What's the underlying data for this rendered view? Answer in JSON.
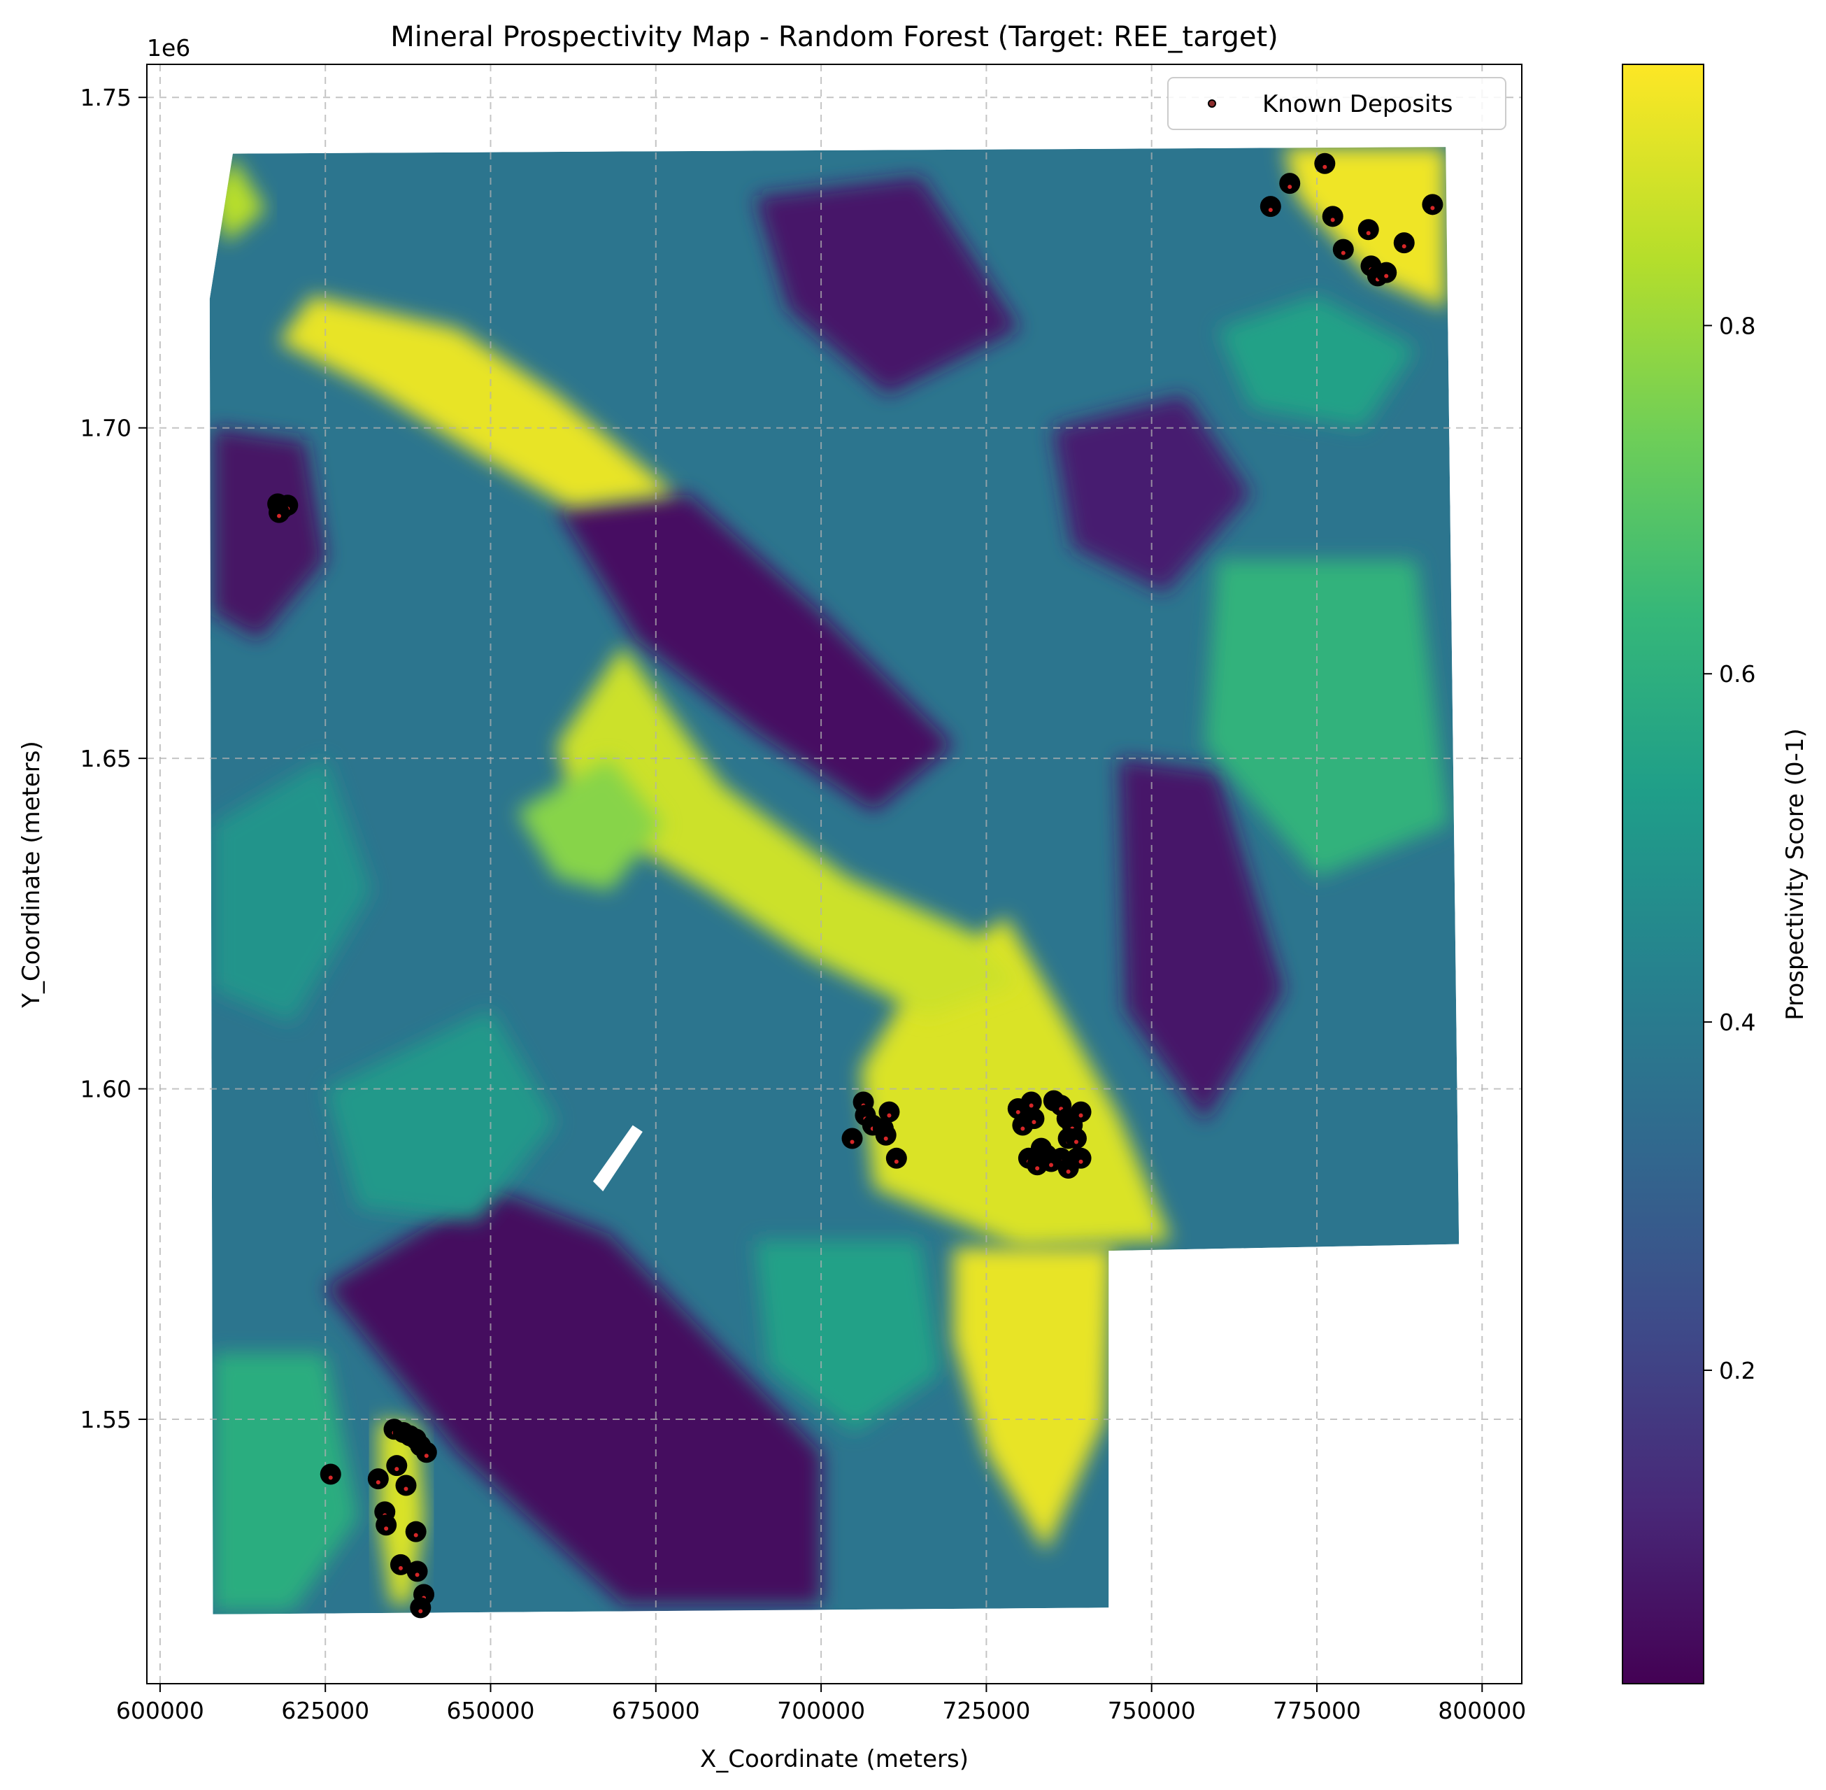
{
  "chart_data": {
    "type": "heatmap",
    "title": "Mineral Prospectivity Map - Random Forest (Target: REE_target)",
    "xlabel": "X_Coordinate (meters)",
    "ylabel": "Y_Coordinate (meters)",
    "y_offset_label": "1e6",
    "xlim": [
      598000,
      806000
    ],
    "ylim": [
      1.51,
      1.755
    ],
    "x_ticks": [
      600000,
      625000,
      650000,
      675000,
      700000,
      725000,
      750000,
      775000,
      800000
    ],
    "x_tick_labels": [
      "600000",
      "625000",
      "650000",
      "675000",
      "700000",
      "725000",
      "750000",
      "775000",
      "800000"
    ],
    "y_ticks": [
      1.55,
      1.6,
      1.65,
      1.7,
      1.75
    ],
    "y_tick_labels": [
      "1.55",
      "1.60",
      "1.65",
      "1.70",
      "1.75"
    ],
    "grid": true,
    "legend": {
      "placement": "top-right",
      "entries": [
        "Known Deposits"
      ]
    },
    "colorbar": {
      "label": "Prospectivity Score (0-1)",
      "colormap": "viridis",
      "range": [
        0.02,
        0.95
      ],
      "ticks": [
        0.2,
        0.4,
        0.6,
        0.8
      ],
      "tick_labels": [
        "0.2",
        "0.4",
        "0.6",
        "0.8"
      ]
    },
    "study_area_outline": [
      [
        611000,
        1.7415
      ],
      [
        794500,
        1.7425
      ],
      [
        796500,
        1.5765
      ],
      [
        743500,
        1.5755
      ],
      [
        743500,
        1.5215
      ],
      [
        608000,
        1.5205
      ],
      [
        607500,
        1.7195
      ]
    ],
    "high_zones": [
      {
        "score": 0.9,
        "poly": [
          [
            728000,
            1.626
          ],
          [
            736000,
            1.612
          ],
          [
            745000,
            1.596
          ],
          [
            753000,
            1.577
          ],
          [
            730000,
            1.576
          ],
          [
            708000,
            1.585
          ],
          [
            706000,
            1.603
          ],
          [
            714000,
            1.616
          ]
        ]
      },
      {
        "score": 0.92,
        "poly": [
          [
            720000,
            1.576
          ],
          [
            744000,
            1.576
          ],
          [
            743000,
            1.55
          ],
          [
            734000,
            1.53
          ],
          [
            725000,
            1.545
          ],
          [
            720000,
            1.562
          ]
        ]
      },
      {
        "score": 0.88,
        "poly": [
          [
            670000,
            1.667
          ],
          [
            685000,
            1.646
          ],
          [
            704000,
            1.632
          ],
          [
            722000,
            1.624
          ],
          [
            730000,
            1.616
          ],
          [
            716000,
            1.611
          ],
          [
            698000,
            1.62
          ],
          [
            683000,
            1.63
          ],
          [
            673000,
            1.636
          ],
          [
            663000,
            1.642
          ],
          [
            660000,
            1.652
          ]
        ]
      },
      {
        "score": 0.78,
        "poly": [
          [
            654000,
            1.642
          ],
          [
            668000,
            1.65
          ],
          [
            676000,
            1.64
          ],
          [
            668000,
            1.63
          ],
          [
            660000,
            1.632
          ]
        ]
      },
      {
        "score": 0.92,
        "poly": [
          [
            623000,
            1.72
          ],
          [
            645000,
            1.715
          ],
          [
            660000,
            1.705
          ],
          [
            678000,
            1.69
          ],
          [
            662000,
            1.688
          ],
          [
            648000,
            1.696
          ],
          [
            632000,
            1.706
          ],
          [
            618000,
            1.713
          ]
        ]
      },
      {
        "score": 0.85,
        "poly": [
          [
            611000,
            1.741
          ],
          [
            616000,
            1.733
          ],
          [
            610000,
            1.728
          ],
          [
            607500,
            1.735
          ]
        ]
      },
      {
        "score": 0.93,
        "poly": [
          [
            770000,
            1.7425
          ],
          [
            794500,
            1.7425
          ],
          [
            794500,
            1.718
          ],
          [
            783000,
            1.723
          ],
          [
            772000,
            1.735
          ]
        ]
      },
      {
        "score": 0.9,
        "poly": [
          [
            633000,
            1.55
          ],
          [
            639000,
            1.549
          ],
          [
            640000,
            1.535
          ],
          [
            638000,
            1.522
          ],
          [
            635000,
            1.522
          ],
          [
            633000,
            1.535
          ]
        ]
      }
    ],
    "mid_zones": [
      {
        "score": 0.62,
        "poly": [
          [
            760000,
            1.68
          ],
          [
            790000,
            1.68
          ],
          [
            795000,
            1.64
          ],
          [
            775000,
            1.632
          ],
          [
            758000,
            1.652
          ]
        ]
      },
      {
        "score": 0.55,
        "poly": [
          [
            760000,
            1.715
          ],
          [
            775000,
            1.72
          ],
          [
            790000,
            1.712
          ],
          [
            782000,
            1.7
          ],
          [
            765000,
            1.703
          ]
        ]
      },
      {
        "score": 0.6,
        "poly": [
          [
            608000,
            1.56
          ],
          [
            625000,
            1.56
          ],
          [
            630000,
            1.535
          ],
          [
            620000,
            1.521
          ],
          [
            608000,
            1.521
          ]
        ]
      },
      {
        "score": 0.5,
        "poly": [
          [
            608000,
            1.64
          ],
          [
            625000,
            1.65
          ],
          [
            632000,
            1.63
          ],
          [
            620000,
            1.61
          ],
          [
            608000,
            1.615
          ]
        ]
      },
      {
        "score": 0.55,
        "poly": [
          [
            690000,
            1.577
          ],
          [
            715000,
            1.577
          ],
          [
            718000,
            1.557
          ],
          [
            705000,
            1.548
          ],
          [
            692000,
            1.558
          ]
        ]
      },
      {
        "score": 0.52,
        "poly": [
          [
            625000,
            1.6
          ],
          [
            650000,
            1.612
          ],
          [
            660000,
            1.595
          ],
          [
            648000,
            1.58
          ],
          [
            630000,
            1.582
          ]
        ]
      }
    ],
    "low_zones": [
      {
        "score": 0.06,
        "poly": [
          [
            660000,
            1.688
          ],
          [
            680000,
            1.69
          ],
          [
            700000,
            1.672
          ],
          [
            720000,
            1.652
          ],
          [
            708000,
            1.642
          ],
          [
            690000,
            1.654
          ],
          [
            672000,
            1.668
          ]
        ]
      },
      {
        "score": 0.05,
        "poly": [
          [
            625000,
            1.57
          ],
          [
            650000,
            1.585
          ],
          [
            668000,
            1.578
          ],
          [
            700000,
            1.545
          ],
          [
            700000,
            1.522
          ],
          [
            670000,
            1.522
          ],
          [
            645000,
            1.545
          ]
        ]
      },
      {
        "score": 0.08,
        "poly": [
          [
            690000,
            1.735
          ],
          [
            715000,
            1.738
          ],
          [
            730000,
            1.715
          ],
          [
            710000,
            1.705
          ],
          [
            695000,
            1.718
          ]
        ]
      },
      {
        "score": 0.07,
        "poly": [
          [
            608000,
            1.7
          ],
          [
            622000,
            1.698
          ],
          [
            625000,
            1.68
          ],
          [
            615000,
            1.668
          ],
          [
            608000,
            1.672
          ]
        ]
      },
      {
        "score": 0.08,
        "poly": [
          [
            745000,
            1.65
          ],
          [
            760000,
            1.648
          ],
          [
            770000,
            1.615
          ],
          [
            758000,
            1.595
          ],
          [
            746000,
            1.612
          ]
        ]
      },
      {
        "score": 0.1,
        "poly": [
          [
            735000,
            1.7
          ],
          [
            755000,
            1.705
          ],
          [
            765000,
            1.69
          ],
          [
            752000,
            1.675
          ],
          [
            738000,
            1.682
          ]
        ]
      }
    ],
    "nodata_polys": [
      [
        [
          665500,
          1.586
        ],
        [
          671500,
          1.5945
        ],
        [
          673000,
          1.5935
        ],
        [
          667000,
          1.5845
        ]
      ]
    ],
    "known_deposits": {
      "name": "Known Deposits",
      "points": [
        [
          617800,
          1.6885
        ],
        [
          618500,
          1.6878
        ],
        [
          619300,
          1.6883
        ],
        [
          618000,
          1.6872
        ],
        [
          625800,
          1.5417
        ],
        [
          633000,
          1.541
        ],
        [
          634000,
          1.536
        ],
        [
          634200,
          1.534
        ],
        [
          635800,
          1.543
        ],
        [
          635400,
          1.5485
        ],
        [
          636800,
          1.548
        ],
        [
          637800,
          1.5475
        ],
        [
          638700,
          1.547
        ],
        [
          639400,
          1.546
        ],
        [
          640300,
          1.545
        ],
        [
          637200,
          1.54
        ],
        [
          638700,
          1.533
        ],
        [
          636400,
          1.528
        ],
        [
          638900,
          1.527
        ],
        [
          639900,
          1.5235
        ],
        [
          639400,
          1.5215
        ],
        [
          704700,
          1.5925
        ],
        [
          706400,
          1.598
        ],
        [
          706700,
          1.596
        ],
        [
          707800,
          1.5945
        ],
        [
          709400,
          1.594
        ],
        [
          710300,
          1.5965
        ],
        [
          711400,
          1.5895
        ],
        [
          709800,
          1.593
        ],
        [
          729800,
          1.597
        ],
        [
          730500,
          1.5945
        ],
        [
          731800,
          1.598
        ],
        [
          732200,
          1.5955
        ],
        [
          731400,
          1.5895
        ],
        [
          732700,
          1.5885
        ],
        [
          733300,
          1.591
        ],
        [
          734100,
          1.59
        ],
        [
          735200,
          1.5982
        ],
        [
          736300,
          1.5975
        ],
        [
          737200,
          1.5955
        ],
        [
          738000,
          1.5945
        ],
        [
          739300,
          1.5965
        ],
        [
          737400,
          1.5925
        ],
        [
          738600,
          1.5925
        ],
        [
          736300,
          1.5895
        ],
        [
          737400,
          1.588
        ],
        [
          738700,
          1.5895
        ],
        [
          739300,
          1.5895
        ],
        [
          734800,
          1.589
        ],
        [
          768000,
          1.7335
        ],
        [
          770900,
          1.737
        ],
        [
          776200,
          1.74
        ],
        [
          777400,
          1.732
        ],
        [
          779000,
          1.727
        ],
        [
          782800,
          1.73
        ],
        [
          783200,
          1.7245
        ],
        [
          784200,
          1.723
        ],
        [
          785500,
          1.7235
        ],
        [
          788200,
          1.728
        ],
        [
          792500,
          1.7338
        ]
      ]
    }
  },
  "colors": {
    "viridis_stops": [
      "#440154",
      "#482878",
      "#3e4a89",
      "#31688e",
      "#26828e",
      "#1f9e89",
      "#35b779",
      "#6ece58",
      "#b5de2b",
      "#fde725"
    ],
    "deposit_marker_fill": "#000000",
    "deposit_center": "#d62728",
    "legend_marker_fill": "#8c2d2d"
  }
}
